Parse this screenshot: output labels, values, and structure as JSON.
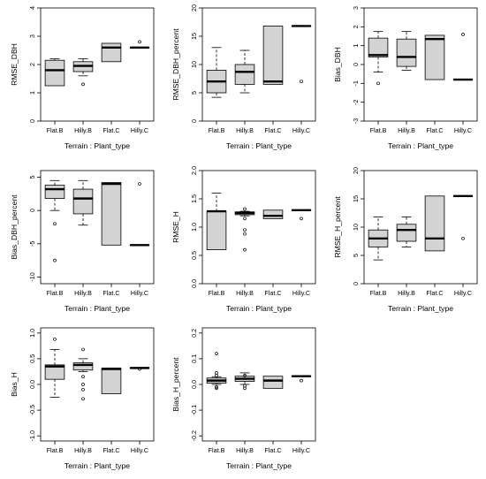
{
  "chart_data": [
    {
      "type": "boxplot",
      "ylabel": "RMSE_DBH",
      "xlabel": "Terrain : Plant_type",
      "categories": [
        "Flat.B",
        "Hilly.B",
        "Flat.C",
        "Hilly.C"
      ],
      "ylim": [
        0,
        4
      ],
      "yticks": [
        0,
        1,
        2,
        3,
        4
      ],
      "boxes": [
        {
          "whisker_low": 1.25,
          "q1": 1.25,
          "median": 1.8,
          "q3": 2.15,
          "whisker_high": 2.2,
          "outliers": []
        },
        {
          "whisker_low": 1.6,
          "q1": 1.75,
          "median": 1.95,
          "q3": 2.1,
          "whisker_high": 2.2,
          "outliers": [
            1.3
          ]
        },
        {
          "whisker_low": 2.1,
          "q1": 2.1,
          "median": 2.6,
          "q3": 2.75,
          "whisker_high": 2.75,
          "outliers": []
        },
        {
          "whisker_low": 2.6,
          "q1": 2.6,
          "median": 2.6,
          "q3": 2.6,
          "whisker_high": 2.6,
          "outliers": [
            2.8
          ]
        }
      ]
    },
    {
      "type": "boxplot",
      "ylabel": "RMSE_DBH_percent",
      "xlabel": "Terrain : Plant_type",
      "categories": [
        "Flat.B",
        "Hilly.B",
        "Flat.C",
        "Hilly.C"
      ],
      "ylim": [
        0,
        20
      ],
      "yticks": [
        0,
        5,
        10,
        15,
        20
      ],
      "boxes": [
        {
          "whisker_low": 4.2,
          "q1": 5,
          "median": 7,
          "q3": 9,
          "whisker_high": 13,
          "outliers": []
        },
        {
          "whisker_low": 5,
          "q1": 6.5,
          "median": 8.7,
          "q3": 10,
          "whisker_high": 12.5,
          "outliers": []
        },
        {
          "whisker_low": 6.5,
          "q1": 6.5,
          "median": 7,
          "q3": 16.8,
          "whisker_high": 16.8,
          "outliers": []
        },
        {
          "whisker_low": 16.8,
          "q1": 16.8,
          "median": 16.8,
          "q3": 16.8,
          "whisker_high": 16.8,
          "outliers": [
            7
          ]
        }
      ]
    },
    {
      "type": "boxplot",
      "ylabel": "Bias_DBH",
      "xlabel": "Terrain : Plant_type",
      "categories": [
        "Flat.B",
        "Hilly.B",
        "Flat.C",
        "Hilly.C"
      ],
      "ylim": [
        -3,
        3
      ],
      "yticks": [
        -3,
        -2,
        -1,
        0,
        1,
        2,
        3
      ],
      "boxes": [
        {
          "whisker_low": -0.4,
          "q1": 0.4,
          "median": 0.5,
          "q3": 1.4,
          "whisker_high": 1.75,
          "outliers": [
            -1
          ]
        },
        {
          "whisker_low": -0.3,
          "q1": -0.1,
          "median": 0.4,
          "q3": 1.35,
          "whisker_high": 1.75,
          "outliers": []
        },
        {
          "whisker_low": -0.8,
          "q1": -0.8,
          "median": 1.35,
          "q3": 1.55,
          "whisker_high": 1.55,
          "outliers": []
        },
        {
          "whisker_low": -0.8,
          "q1": -0.8,
          "median": -0.8,
          "q3": -0.8,
          "whisker_high": -0.8,
          "outliers": [
            1.6
          ]
        }
      ]
    },
    {
      "type": "boxplot",
      "ylabel": "Bias_DBH_percent",
      "xlabel": "Terrain : Plant_type",
      "categories": [
        "Flat.B",
        "Hilly.B",
        "Flat.C",
        "Hilly.C"
      ],
      "ylim": [
        -11,
        6
      ],
      "yticks": [
        -10,
        -5,
        0,
        5
      ],
      "boxes": [
        {
          "whisker_low": 0,
          "q1": 1.8,
          "median": 3.2,
          "q3": 3.8,
          "whisker_high": 4.5,
          "outliers": [
            -2,
            -7.5
          ]
        },
        {
          "whisker_low": -2.2,
          "q1": -0.5,
          "median": 1.8,
          "q3": 3.2,
          "whisker_high": 4.5,
          "outliers": []
        },
        {
          "whisker_low": -5.2,
          "q1": -5.2,
          "median": 4.0,
          "q3": 4.2,
          "whisker_high": 4.2,
          "outliers": []
        },
        {
          "whisker_low": -5.2,
          "q1": -5.2,
          "median": -5.2,
          "q3": -5.2,
          "whisker_high": -5.2,
          "outliers": [
            4
          ]
        }
      ]
    },
    {
      "type": "boxplot",
      "ylabel": "RMSE_H",
      "xlabel": "Terrain : Plant_type",
      "categories": [
        "Flat.B",
        "Hilly.B",
        "Flat.C",
        "Hilly.C"
      ],
      "ylim": [
        0,
        2
      ],
      "yticks": [
        0.0,
        0.5,
        1.0,
        1.5,
        2.0
      ],
      "ytick_labels": [
        "0.0",
        "0.5",
        "1.0",
        "1.5",
        "2.0"
      ],
      "boxes": [
        {
          "whisker_low": 0.6,
          "q1": 0.6,
          "median": 1.28,
          "q3": 1.28,
          "whisker_high": 1.6,
          "outliers": []
        },
        {
          "whisker_low": 1.2,
          "q1": 1.22,
          "median": 1.25,
          "q3": 1.27,
          "whisker_high": 1.28,
          "outliers": [
            1.32,
            1.15,
            0.95,
            0.88,
            0.6
          ]
        },
        {
          "whisker_low": 1.15,
          "q1": 1.15,
          "median": 1.2,
          "q3": 1.3,
          "whisker_high": 1.3,
          "outliers": []
        },
        {
          "whisker_low": 1.3,
          "q1": 1.3,
          "median": 1.3,
          "q3": 1.3,
          "whisker_high": 1.3,
          "outliers": [
            1.15
          ]
        }
      ]
    },
    {
      "type": "boxplot",
      "ylabel": "RMSE_H_percent",
      "xlabel": "Terrain : Plant_type",
      "categories": [
        "Flat.B",
        "Hilly.B",
        "Flat.C",
        "Hilly.C"
      ],
      "ylim": [
        0,
        20
      ],
      "yticks": [
        0,
        5,
        10,
        15,
        20
      ],
      "boxes": [
        {
          "whisker_low": 4.2,
          "q1": 6.5,
          "median": 8,
          "q3": 9.5,
          "whisker_high": 11.8,
          "outliers": []
        },
        {
          "whisker_low": 6.5,
          "q1": 7.5,
          "median": 9.5,
          "q3": 10.5,
          "whisker_high": 11.8,
          "outliers": []
        },
        {
          "whisker_low": 5.8,
          "q1": 5.8,
          "median": 8,
          "q3": 15.5,
          "whisker_high": 15.5,
          "outliers": []
        },
        {
          "whisker_low": 15.5,
          "q1": 15.5,
          "median": 15.5,
          "q3": 15.5,
          "whisker_high": 15.5,
          "outliers": [
            8
          ]
        }
      ]
    },
    {
      "type": "boxplot",
      "ylabel": "Bias_H",
      "xlabel": "Terrain : Plant_type",
      "categories": [
        "Flat.B",
        "Hilly.B",
        "Flat.C",
        "Hilly.C"
      ],
      "ylim": [
        -1.1,
        1.1
      ],
      "yticks": [
        -1.0,
        -0.5,
        0.0,
        0.5,
        1.0
      ],
      "ytick_labels": [
        "-1.0",
        "-0.5",
        "0.0",
        "0.5",
        "1.0"
      ],
      "boxes": [
        {
          "whisker_low": -0.25,
          "q1": 0.1,
          "median": 0.35,
          "q3": 0.38,
          "whisker_high": 0.68,
          "outliers": [
            0.88
          ]
        },
        {
          "whisker_low": 0.25,
          "q1": 0.28,
          "median": 0.38,
          "q3": 0.42,
          "whisker_high": 0.5,
          "outliers": [
            0.68,
            0.15,
            0.0,
            -0.1,
            -0.28
          ]
        },
        {
          "whisker_low": -0.18,
          "q1": -0.18,
          "median": 0.3,
          "q3": 0.32,
          "whisker_high": 0.32,
          "outliers": []
        },
        {
          "whisker_low": 0.32,
          "q1": 0.32,
          "median": 0.32,
          "q3": 0.32,
          "whisker_high": 0.32,
          "outliers": [
            0.3
          ]
        }
      ]
    },
    {
      "type": "boxplot",
      "ylabel": "Bias_H_percent",
      "xlabel": "Terrain : Plant_type",
      "categories": [
        "Flat.B",
        "Hilly.B",
        "Flat.C",
        "Hilly.C"
      ],
      "ylim": [
        -0.22,
        0.22
      ],
      "yticks": [
        -0.2,
        -0.1,
        0.0,
        0.1,
        0.2
      ],
      "ytick_labels": [
        "-0.2",
        "-0.1",
        "0.0",
        "0.1",
        "0.2"
      ],
      "boxes": [
        {
          "whisker_low": 0.0,
          "q1": 0.005,
          "median": 0.015,
          "q3": 0.025,
          "whisker_high": 0.03,
          "outliers": [
            0.12,
            0.045,
            0.035,
            -0.01,
            -0.015
          ]
        },
        {
          "whisker_low": 0.0,
          "q1": 0.012,
          "median": 0.022,
          "q3": 0.032,
          "whisker_high": 0.045,
          "outliers": [
            0.035,
            -0.005,
            -0.015
          ]
        },
        {
          "whisker_low": -0.015,
          "q1": -0.015,
          "median": 0.015,
          "q3": 0.032,
          "whisker_high": 0.032,
          "outliers": []
        },
        {
          "whisker_low": 0.032,
          "q1": 0.032,
          "median": 0.032,
          "q3": 0.032,
          "whisker_high": 0.032,
          "outliers": [
            0.015
          ]
        }
      ]
    }
  ],
  "style": {
    "box_fill": "#d3d3d3",
    "stroke": "#000000",
    "background": "#ffffff"
  }
}
